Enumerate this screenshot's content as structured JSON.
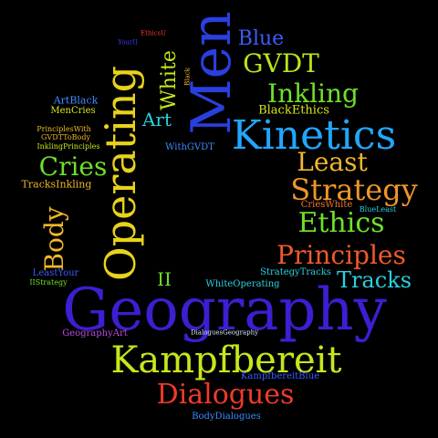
{
  "background": "#000000",
  "words": [
    {
      "text": "Geography",
      "color": "#3b1fd1"
    },
    {
      "text": "Men",
      "color": "#2a3fe0"
    },
    {
      "text": "Operating",
      "color": "#e8d21c"
    },
    {
      "text": "Kinetics",
      "color": "#22a6ff"
    },
    {
      "text": "Kampfbereit",
      "color": "#c8e61c"
    },
    {
      "text": "Strategy",
      "color": "#f0962a"
    },
    {
      "text": "Principles",
      "color": "#f05a2a"
    },
    {
      "text": "Dialogues",
      "color": "#f03a2a"
    },
    {
      "text": "Ethics",
      "color": "#6ee02a"
    },
    {
      "text": "Inkling",
      "color": "#6ee02a"
    },
    {
      "text": "GVDT",
      "color": "#b8e61c"
    },
    {
      "text": "Least",
      "color": "#f0b82a"
    },
    {
      "text": "Cries",
      "color": "#6ee02a"
    },
    {
      "text": "Body",
      "color": "#f0b82a"
    },
    {
      "text": "Tracks",
      "color": "#2ad0e0"
    },
    {
      "text": "Blue",
      "color": "#3b5bff"
    },
    {
      "text": "White",
      "color": "#c8e61c"
    },
    {
      "text": "Art",
      "color": "#2ad0e0"
    },
    {
      "text": "II",
      "color": "#6ee02a"
    },
    {
      "text": "BlackEthics",
      "color": "#d8e61c"
    },
    {
      "text": "ArtBlack",
      "color": "#3b8bff"
    },
    {
      "text": "MenCries",
      "color": "#d8e61c"
    },
    {
      "text": "PrinciplesWith",
      "color": "#f0b82a"
    },
    {
      "text": "GVDTToBody",
      "color": "#f0b82a"
    },
    {
      "text": "InklingPrinciples",
      "color": "#c8e61c"
    },
    {
      "text": "TracksInkling",
      "color": "#f0b82a"
    },
    {
      "text": "WithGVDT",
      "color": "#3b8bff"
    },
    {
      "text": "CriesWhite",
      "color": "#f07a2a"
    },
    {
      "text": "BlueLeast",
      "color": "#2ad0e0"
    },
    {
      "text": "StrategyTracks",
      "color": "#2ad0e0"
    },
    {
      "text": "WhiteOperating",
      "color": "#2ad0e0"
    },
    {
      "text": "LeastYour",
      "color": "#3b5bff"
    },
    {
      "text": "IIStrategy",
      "color": "#6ee02a"
    },
    {
      "text": "DialoguesGeography",
      "color": "#d8e6ff"
    },
    {
      "text": "GeographyArt",
      "color": "#b84ae0"
    },
    {
      "text": "KampfbereitBlue",
      "color": "#3b5bff"
    },
    {
      "text": "BodyDialogues",
      "color": "#3b8bff"
    },
    {
      "text": "EthicsU",
      "color": "#f03a2a"
    },
    {
      "text": "YourII",
      "color": "#3b3bff"
    },
    {
      "text": "Black",
      "color": "#f0b82a"
    }
  ]
}
